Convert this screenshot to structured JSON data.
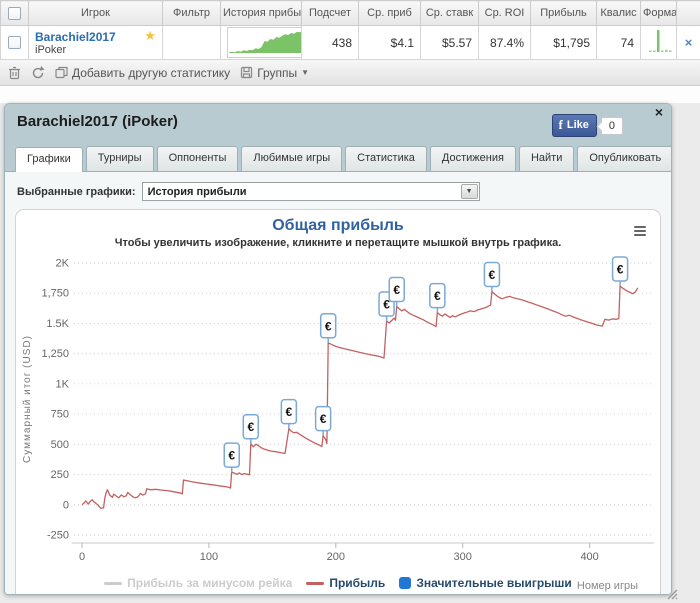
{
  "table": {
    "headers": [
      "",
      "Игрок",
      "Фильтр",
      "История прибы",
      "Подсчет",
      "Ср. приб",
      "Ср. ставк",
      "Ср. ROI",
      "Прибыль",
      "Квалис",
      "Форма",
      ""
    ],
    "row": {
      "player": "Barachiel2017",
      "network": "iPoker",
      "count": "438",
      "avg_profit": "$4.1",
      "avg_stake": "$5.57",
      "avg_roi": "87.4%",
      "profit": "$1,795",
      "qualifies": "74",
      "remove_label": "×",
      "star_icon": "star-badge",
      "history_spark": [
        1,
        2,
        1,
        3,
        2,
        4,
        3,
        5,
        4,
        7,
        6,
        9,
        18,
        17,
        21,
        20,
        24,
        23,
        26,
        28,
        27,
        30,
        29,
        32,
        31,
        33
      ],
      "form_spark": [
        1,
        1,
        20,
        1,
        2,
        1
      ],
      "spark_color": "#7cc266",
      "form_color": "#90d77e"
    }
  },
  "toolbar": {
    "add_stat": "Добавить другую статистику",
    "groups": "Группы",
    "caret": "▼",
    "icons": [
      "trash-icon",
      "refresh-icon",
      "copy-icon",
      "groups-icon"
    ]
  },
  "panel": {
    "title": "Barachiel2017 (iPoker)",
    "close": "×",
    "fb_f": "f",
    "fb_like": "Like",
    "like_count": "0"
  },
  "tabs": [
    {
      "label": "Графики",
      "active": true
    },
    {
      "label": "Турниры",
      "active": false
    },
    {
      "label": "Оппоненты",
      "active": false
    },
    {
      "label": "Любимые игры",
      "active": false
    },
    {
      "label": "Статистика",
      "active": false
    },
    {
      "label": "Достижения",
      "active": false
    },
    {
      "label": "Найти",
      "active": false
    },
    {
      "label": "Опубликовать",
      "active": false
    }
  ],
  "chart_select": {
    "label": "Выбранные графики:",
    "value": "История прибыли"
  },
  "chart_data": {
    "type": "line",
    "title": "Общая прибыль",
    "subtitle": "Чтобы увеличить изображение, кликните и перетащите мышкой внутрь графика.",
    "xlabel": "Номер игры",
    "ylabel": "Суммарный итог (USD)",
    "xlim": [
      0,
      446
    ],
    "ylim": [
      -250,
      2000
    ],
    "x_ticks": [
      0,
      100,
      200,
      300,
      400
    ],
    "y_ticks": [
      {
        "v": -250,
        "label": "-250"
      },
      {
        "v": 0,
        "label": "0"
      },
      {
        "v": 250,
        "label": "250"
      },
      {
        "v": 500,
        "label": "500"
      },
      {
        "v": 750,
        "label": "750"
      },
      {
        "v": 1000,
        "label": "1K"
      },
      {
        "v": 1250,
        "label": "1,250"
      },
      {
        "v": 1500,
        "label": "1.5K"
      },
      {
        "v": 1750,
        "label": "1,750"
      },
      {
        "v": 2000,
        "label": "2K"
      }
    ],
    "grid": "horizontal-dotted",
    "legend_position": "bottom-center",
    "legend": [
      {
        "label": "Прибыль за минусом рейка",
        "type": "line",
        "color": "#cccccc",
        "disabled": true
      },
      {
        "label": "Прибыль",
        "type": "line",
        "color": "#c36161",
        "disabled": false
      },
      {
        "label": "Значительные выигрыши",
        "type": "square",
        "color": "#2277d4",
        "disabled": false
      }
    ],
    "series": [
      {
        "name": "Прибыль",
        "color": "#c36161",
        "points": [
          [
            0,
            0
          ],
          [
            2,
            18
          ],
          [
            3,
            32
          ],
          [
            5,
            6
          ],
          [
            6,
            22
          ],
          [
            8,
            42
          ],
          [
            9,
            28
          ],
          [
            11,
            12
          ],
          [
            13,
            -8
          ],
          [
            15,
            -30
          ],
          [
            17,
            -24
          ],
          [
            18,
            55
          ],
          [
            19,
            100
          ],
          [
            20,
            125
          ],
          [
            22,
            78
          ],
          [
            24,
            62
          ],
          [
            25,
            88
          ],
          [
            27,
            72
          ],
          [
            29,
            58
          ],
          [
            31,
            82
          ],
          [
            33,
            66
          ],
          [
            35,
            75
          ],
          [
            36,
            102
          ],
          [
            38,
            84
          ],
          [
            40,
            66
          ],
          [
            42,
            58
          ],
          [
            44,
            64
          ],
          [
            46,
            94
          ],
          [
            48,
            80
          ],
          [
            50,
            92
          ],
          [
            51,
            132
          ],
          [
            54,
            124
          ],
          [
            58,
            128
          ],
          [
            62,
            122
          ],
          [
            66,
            118
          ],
          [
            70,
            112
          ],
          [
            74,
            104
          ],
          [
            78,
            96
          ],
          [
            79,
            90
          ],
          [
            80,
            205
          ],
          [
            83,
            198
          ],
          [
            86,
            192
          ],
          [
            90,
            184
          ],
          [
            94,
            178
          ],
          [
            98,
            172
          ],
          [
            102,
            166
          ],
          [
            106,
            160
          ],
          [
            110,
            154
          ],
          [
            113,
            150
          ],
          [
            116,
            144
          ],
          [
            117,
            138
          ],
          [
            118,
            270
          ],
          [
            120,
            262
          ],
          [
            122,
            252
          ],
          [
            124,
            264
          ],
          [
            126,
            250
          ],
          [
            128,
            258
          ],
          [
            130,
            254
          ],
          [
            132,
            248
          ],
          [
            133,
            505
          ],
          [
            135,
            480
          ],
          [
            137,
            500
          ],
          [
            139,
            490
          ],
          [
            141,
            474
          ],
          [
            143,
            462
          ],
          [
            146,
            452
          ],
          [
            149,
            444
          ],
          [
            153,
            438
          ],
          [
            157,
            430
          ],
          [
            160,
            424
          ],
          [
            163,
            630
          ],
          [
            165,
            608
          ],
          [
            167,
            595
          ],
          [
            169,
            600
          ],
          [
            172,
            580
          ],
          [
            175,
            560
          ],
          [
            178,
            542
          ],
          [
            181,
            524
          ],
          [
            184,
            508
          ],
          [
            187,
            494
          ],
          [
            189,
            482
          ],
          [
            190,
            572
          ],
          [
            191,
            556
          ],
          [
            192,
            540
          ],
          [
            193,
            508
          ],
          [
            194,
            1340
          ],
          [
            197,
            1324
          ],
          [
            200,
            1310
          ],
          [
            204,
            1298
          ],
          [
            208,
            1288
          ],
          [
            212,
            1278
          ],
          [
            216,
            1268
          ],
          [
            220,
            1258
          ],
          [
            224,
            1248
          ],
          [
            228,
            1240
          ],
          [
            232,
            1232
          ],
          [
            235,
            1224
          ],
          [
            238,
            1214
          ],
          [
            240,
            1520
          ],
          [
            242,
            1504
          ],
          [
            244,
            1524
          ],
          [
            246,
            1544
          ],
          [
            247,
            1528
          ],
          [
            248,
            1640
          ],
          [
            250,
            1620
          ],
          [
            252,
            1604
          ],
          [
            254,
            1618
          ],
          [
            256,
            1600
          ],
          [
            258,
            1584
          ],
          [
            260,
            1572
          ],
          [
            263,
            1558
          ],
          [
            266,
            1544
          ],
          [
            269,
            1530
          ],
          [
            271,
            1518
          ],
          [
            273,
            1506
          ],
          [
            275,
            1496
          ],
          [
            277,
            1486
          ],
          [
            279,
            1474
          ],
          [
            280,
            1590
          ],
          [
            282,
            1572
          ],
          [
            284,
            1560
          ],
          [
            286,
            1578
          ],
          [
            288,
            1564
          ],
          [
            290,
            1550
          ],
          [
            292,
            1564
          ],
          [
            294,
            1554
          ],
          [
            297,
            1570
          ],
          [
            300,
            1582
          ],
          [
            303,
            1592
          ],
          [
            306,
            1604
          ],
          [
            309,
            1598
          ],
          [
            312,
            1612
          ],
          [
            315,
            1622
          ],
          [
            318,
            1632
          ],
          [
            320,
            1642
          ],
          [
            322,
            1652
          ],
          [
            323,
            1764
          ],
          [
            325,
            1744
          ],
          [
            327,
            1728
          ],
          [
            329,
            1714
          ],
          [
            331,
            1704
          ],
          [
            334,
            1716
          ],
          [
            337,
            1724
          ],
          [
            340,
            1712
          ],
          [
            343,
            1704
          ],
          [
            347,
            1694
          ],
          [
            351,
            1680
          ],
          [
            355,
            1666
          ],
          [
            359,
            1650
          ],
          [
            363,
            1636
          ],
          [
            367,
            1620
          ],
          [
            371,
            1604
          ],
          [
            375,
            1588
          ],
          [
            378,
            1572
          ],
          [
            381,
            1560
          ],
          [
            384,
            1568
          ],
          [
            387,
            1554
          ],
          [
            390,
            1542
          ],
          [
            393,
            1530
          ],
          [
            396,
            1520
          ],
          [
            399,
            1510
          ],
          [
            402,
            1500
          ],
          [
            405,
            1490
          ],
          [
            408,
            1482
          ],
          [
            410,
            1478
          ],
          [
            412,
            1534
          ],
          [
            415,
            1528
          ],
          [
            418,
            1538
          ],
          [
            421,
            1534
          ],
          [
            423,
            1540
          ],
          [
            424,
            1810
          ],
          [
            426,
            1792
          ],
          [
            428,
            1778
          ],
          [
            430,
            1766
          ],
          [
            432,
            1756
          ],
          [
            434,
            1746
          ],
          [
            436,
            1760
          ],
          [
            438,
            1795
          ]
        ]
      }
    ],
    "markers": {
      "name": "Значительные выигрыши",
      "symbol": "€",
      "box_border": "#7aa9d8",
      "box_fill": "#ffffff",
      "points": [
        [
          118,
          270
        ],
        [
          133,
          505
        ],
        [
          163,
          630
        ],
        [
          190,
          572
        ],
        [
          194,
          1340
        ],
        [
          240,
          1520
        ],
        [
          248,
          1640
        ],
        [
          280,
          1590
        ],
        [
          323,
          1764
        ],
        [
          424,
          1810
        ]
      ]
    }
  }
}
